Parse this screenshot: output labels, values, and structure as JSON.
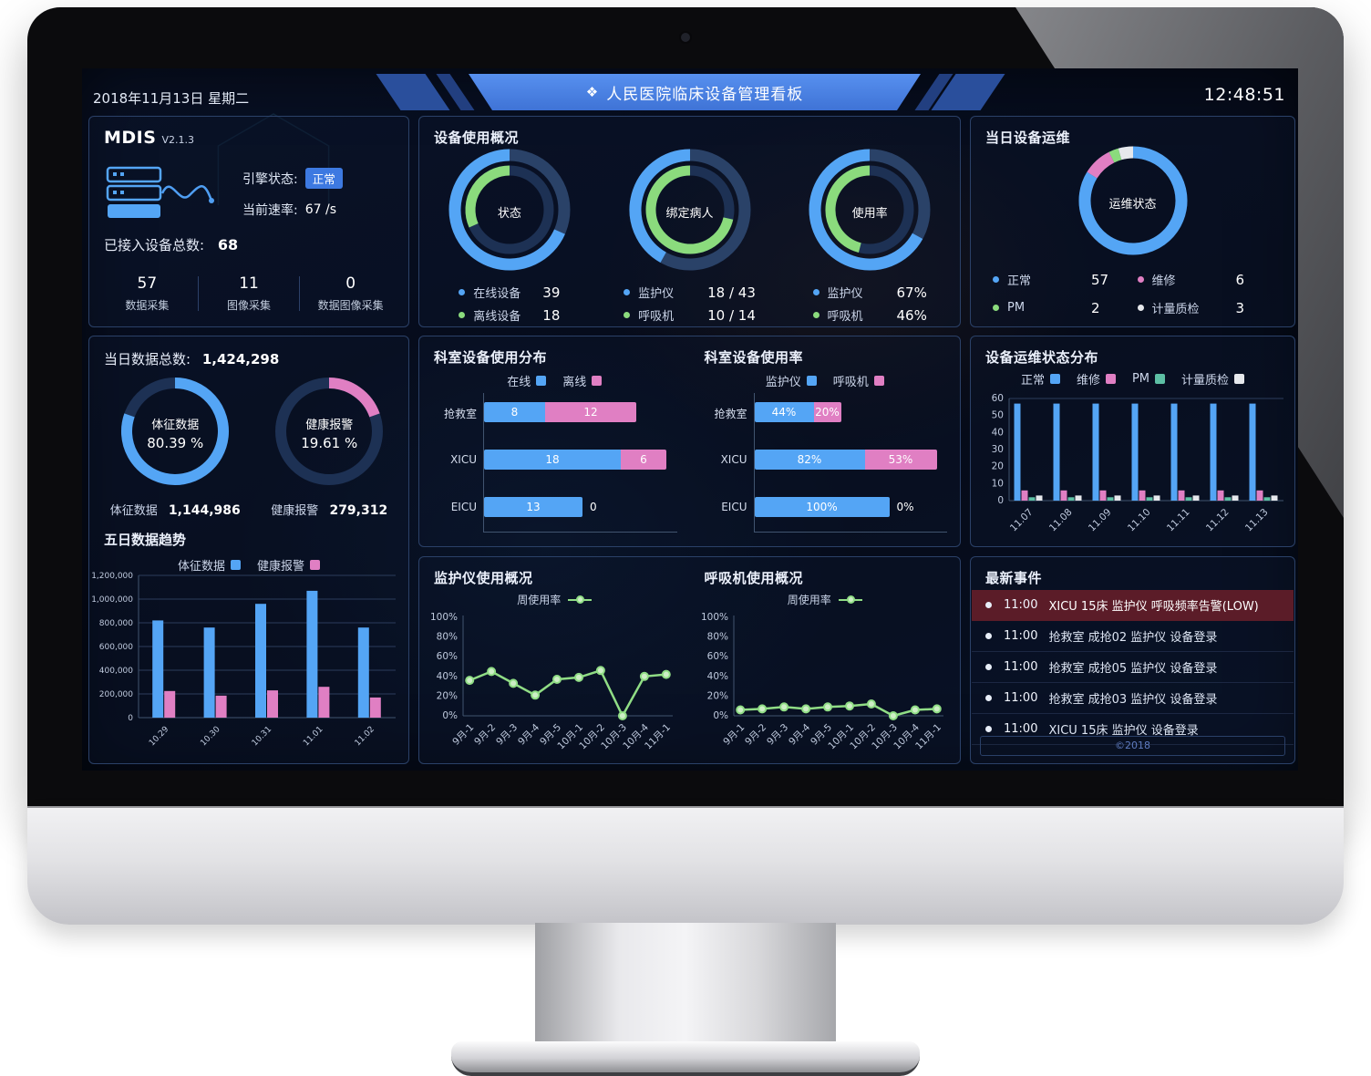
{
  "header": {
    "date": "2018年11月13日 星期二",
    "title_icon": "❖",
    "title": "人民医院临床设备管理看板",
    "time": "12:48:51"
  },
  "mdis": {
    "title": "MDIS",
    "version": "V2.1.3",
    "engine_label": "引擎状态:",
    "engine_status": "正常",
    "rate_label": "当前速率:",
    "rate_value": "67 /s",
    "total_label": "已接入设备总数:",
    "total_value": "68",
    "stats": [
      {
        "value": "57",
        "label": "数据采集"
      },
      {
        "value": "11",
        "label": "图像采集"
      },
      {
        "value": "0",
        "label": "数据图像采集"
      }
    ]
  },
  "device_usage": {
    "title": "设备使用概况",
    "donuts": [
      {
        "center": "状态",
        "legend": [
          {
            "color": "blue",
            "label": "在线设备",
            "value": "39"
          },
          {
            "color": "green",
            "label": "离线设备",
            "value": "18"
          }
        ]
      },
      {
        "center": "绑定病人",
        "legend": [
          {
            "color": "blue",
            "label": "监护仪",
            "value": "18 / 43"
          },
          {
            "color": "green",
            "label": "呼吸机",
            "value": "10 / 14"
          }
        ]
      },
      {
        "center": "使用率",
        "legend": [
          {
            "color": "blue",
            "label": "监护仪",
            "value": "67%"
          },
          {
            "color": "green",
            "label": "呼吸机",
            "value": "46%"
          }
        ]
      }
    ]
  },
  "maintenance_today": {
    "title": "当日设备运维",
    "center": "运维状态",
    "legend": [
      {
        "color": "blue",
        "label": "正常",
        "value": "57"
      },
      {
        "color": "pink",
        "label": "维修",
        "value": "6"
      },
      {
        "color": "green",
        "label": "PM",
        "value": "2"
      },
      {
        "color": "white",
        "label": "计量质检",
        "value": "3"
      }
    ]
  },
  "data_today": {
    "title_label": "当日数据总数:",
    "title_value": "1,424,298",
    "donuts": [
      {
        "center_line1": "体征数据",
        "center_line2": "80.39 %",
        "footer_label": "体征数据",
        "footer_value": "1,144,986"
      },
      {
        "center_line1": "健康报警",
        "center_line2": "19.61 %",
        "footer_label": "健康报警",
        "footer_value": "279,312"
      }
    ],
    "trend": {
      "title": "五日数据趋势",
      "legend": [
        {
          "color": "blue",
          "label": "体征数据"
        },
        {
          "color": "pink",
          "label": "健康报警"
        }
      ]
    }
  },
  "dept": {
    "dist": {
      "title": "科室设备使用分布",
      "legend": [
        {
          "color": "blue",
          "label": "在线"
        },
        {
          "color": "pink",
          "label": "离线"
        }
      ]
    },
    "rate": {
      "title": "科室设备使用率",
      "legend": [
        {
          "color": "blue",
          "label": "监护仪"
        },
        {
          "color": "pink",
          "label": "呼吸机"
        }
      ]
    }
  },
  "maintenance_dist": {
    "title": "设备运维状态分布",
    "legend": [
      {
        "color": "blue",
        "label": "正常"
      },
      {
        "color": "pink",
        "label": "维修"
      },
      {
        "color": "teal",
        "label": "PM"
      },
      {
        "color": "white",
        "label": "计量质检"
      }
    ]
  },
  "weekly": {
    "monitor_title": "监护仪使用概况",
    "vent_title": "呼吸机使用概况",
    "legend_label": "周使用率"
  },
  "events": {
    "title": "最新事件",
    "footer": "©2018",
    "items": [
      {
        "time": "11:00",
        "text": "XICU 15床 监护仪 呼吸频率告警(LOW)",
        "alert": true
      },
      {
        "time": "11:00",
        "text": "抢救室 成抢02 监护仪 设备登录",
        "alert": false
      },
      {
        "time": "11:00",
        "text": "抢救室 成抢05 监护仪 设备登录",
        "alert": false
      },
      {
        "time": "11:00",
        "text": "抢救室 成抢03 监护仪 设备登录",
        "alert": false
      },
      {
        "time": "11:00",
        "text": "XICU 15床 监护仪 设备登录",
        "alert": false
      }
    ]
  },
  "colors": {
    "blue": "#54a5f5",
    "green": "#8bdb7d",
    "pink": "#e07fc3",
    "teal": "#5dbfa4",
    "white": "#e6e8ec",
    "track": "#2a4268",
    "track2": "#1d3154",
    "axis": "#41546f",
    "grid": "#2c3c5c",
    "line_green": "#90dd85",
    "banner": "#4c86e8",
    "badge_bg": "#3d79e1",
    "alert_bg": "#5b1c28"
  },
  "chart_data": [
    {
      "id": "usage-status",
      "type": "donut",
      "title": "状态",
      "direction": "ccw",
      "rings": [
        {
          "total": 57,
          "track": "track",
          "segments": [
            {
              "name": "在线设备",
              "value": 39,
              "color": "blue"
            }
          ]
        },
        {
          "total": 57,
          "track": "track2",
          "segments": [
            {
              "name": "离线设备",
              "value": 18,
              "color": "green"
            }
          ]
        }
      ]
    },
    {
      "id": "usage-binding",
      "type": "donut",
      "title": "绑定病人",
      "direction": "ccw",
      "rings": [
        {
          "total": 43,
          "track": "track",
          "segments": [
            {
              "name": "监护仪",
              "value": 18,
              "color": "blue"
            }
          ]
        },
        {
          "total": 14,
          "track": "track2",
          "segments": [
            {
              "name": "呼吸机",
              "value": 10,
              "color": "green"
            }
          ]
        }
      ]
    },
    {
      "id": "usage-rate",
      "type": "donut",
      "title": "使用率",
      "direction": "ccw",
      "rings": [
        {
          "total": 100,
          "track": "track",
          "segments": [
            {
              "name": "监护仪",
              "value": 67,
              "color": "blue"
            }
          ]
        },
        {
          "total": 100,
          "track": "track2",
          "segments": [
            {
              "name": "呼吸机",
              "value": 46,
              "color": "green"
            }
          ]
        }
      ]
    },
    {
      "id": "ops-status",
      "type": "donut",
      "title": "运维状态",
      "direction": "ccw",
      "rings": [
        {
          "total": 68,
          "track": "track",
          "segments": [
            {
              "name": "计量质检",
              "value": 3,
              "color": "white"
            },
            {
              "name": "PM",
              "value": 2,
              "color": "green"
            },
            {
              "name": "维修",
              "value": 6,
              "color": "pink"
            },
            {
              "name": "正常",
              "value": 57,
              "color": "blue"
            }
          ]
        }
      ]
    },
    {
      "id": "vital-pct",
      "type": "donut",
      "title": "体征数据",
      "direction": "cw",
      "rings": [
        {
          "total": 100,
          "track": "track2",
          "segments": [
            {
              "name": "体征数据",
              "value": 80.39,
              "color": "blue"
            }
          ]
        }
      ]
    },
    {
      "id": "alarm-pct",
      "type": "donut",
      "title": "健康报警",
      "direction": "cw",
      "rings": [
        {
          "total": 100,
          "track": "track2",
          "segments": [
            {
              "name": "健康报警",
              "value": 19.61,
              "color": "pink"
            }
          ]
        }
      ]
    },
    {
      "id": "five-day-trend",
      "type": "bar",
      "title": "五日数据趋势",
      "categories": [
        "10.29",
        "10.30",
        "10.31",
        "11.01",
        "11.02"
      ],
      "series": [
        {
          "name": "体征数据",
          "color": "blue",
          "values": [
            820000,
            760000,
            960000,
            1070000,
            760000
          ]
        },
        {
          "name": "健康报警",
          "color": "pink",
          "values": [
            225000,
            185000,
            230000,
            260000,
            170000
          ]
        }
      ],
      "ylim": [
        0,
        1200000
      ],
      "yticks": [
        0,
        200000,
        400000,
        600000,
        800000,
        1000000,
        1200000
      ],
      "ytick_labels": [
        "0",
        "200,000",
        "400,000",
        "600,000",
        "800,000",
        "1,000,000",
        "1,200,000"
      ],
      "grid_all": true
    },
    {
      "id": "ops-dist",
      "type": "bar",
      "title": "设备运维状态分布",
      "categories": [
        "11.07",
        "11.08",
        "11.09",
        "11.10",
        "11.11",
        "11.12",
        "11.13"
      ],
      "series": [
        {
          "name": "正常",
          "color": "blue",
          "values": [
            57,
            57,
            57,
            57,
            57,
            57,
            57
          ]
        },
        {
          "name": "维修",
          "color": "pink",
          "values": [
            6,
            6,
            6,
            6,
            6,
            6,
            6
          ]
        },
        {
          "name": "PM",
          "color": "teal",
          "values": [
            2,
            2,
            2,
            2,
            2,
            2,
            2
          ]
        },
        {
          "name": "计量质检",
          "color": "white",
          "values": [
            3,
            3,
            3,
            3,
            3,
            3,
            3
          ]
        }
      ],
      "ylim": [
        0,
        60
      ],
      "yticks": [
        0,
        10,
        20,
        30,
        40,
        50,
        60
      ],
      "ytick_labels": [
        "0",
        "10",
        "20",
        "30",
        "40",
        "50",
        "60"
      ],
      "grid_all": false
    },
    {
      "id": "dept-dist",
      "type": "hbar-stacked",
      "title": "科室设备使用分布",
      "categories": [
        "抢救室",
        "XICU",
        "EICU"
      ],
      "xmax": 24,
      "series": [
        {
          "name": "在线",
          "color": "blue",
          "values": [
            8,
            18,
            13
          ],
          "labels": [
            "8",
            "18",
            "13"
          ]
        },
        {
          "name": "离线",
          "color": "pink",
          "values": [
            12,
            6,
            0
          ],
          "labels": [
            "12",
            "6",
            "0"
          ]
        }
      ]
    },
    {
      "id": "dept-rate",
      "type": "hbar-stacked",
      "title": "科室设备使用率",
      "categories": [
        "抢救室",
        "XICU",
        "EICU"
      ],
      "xmax": 135,
      "series": [
        {
          "name": "监护仪",
          "color": "blue",
          "values": [
            44,
            82,
            100
          ],
          "labels": [
            "44%",
            "82%",
            "100%"
          ]
        },
        {
          "name": "呼吸机",
          "color": "pink",
          "values": [
            20,
            53,
            0
          ],
          "labels": [
            "20%",
            "53%",
            "0%"
          ]
        }
      ]
    },
    {
      "id": "monitor-week",
      "type": "line",
      "title": "监护仪使用概况",
      "series_name": "周使用率",
      "color": "line_green",
      "x": [
        "9月-1",
        "9月-2",
        "9月-3",
        "9月-4",
        "9月-5",
        "10月-1",
        "10月-2",
        "10月-3",
        "10月-4",
        "11月-1"
      ],
      "values": [
        36,
        45,
        33,
        21,
        37,
        39,
        46,
        0,
        40,
        42
      ],
      "ylim": [
        0,
        100
      ],
      "ystep": 20,
      "unit": "%"
    },
    {
      "id": "vent-week",
      "type": "line",
      "title": "呼吸机使用概况",
      "series_name": "周使用率",
      "color": "line_green",
      "x": [
        "9月-1",
        "9月-2",
        "9月-3",
        "9月-4",
        "9月-5",
        "10月-1",
        "10月-2",
        "10月-3",
        "10月-4",
        "11月-1"
      ],
      "values": [
        6,
        7,
        9,
        7,
        9,
        10,
        12,
        0,
        6,
        7
      ],
      "ylim": [
        0,
        100
      ],
      "ystep": 20,
      "unit": "%"
    }
  ]
}
